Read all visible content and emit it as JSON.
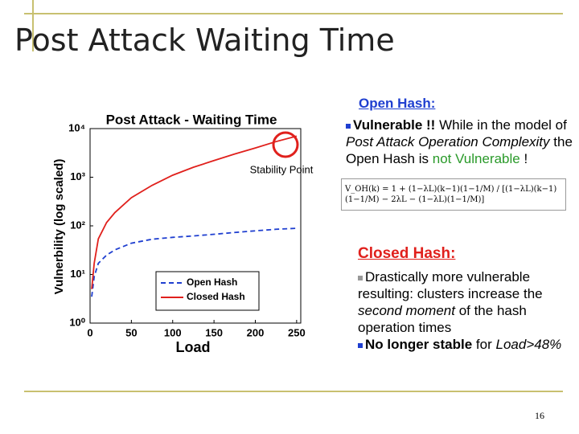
{
  "header": {
    "title": "Post Attack Waiting Time"
  },
  "chart_data": {
    "type": "line",
    "title": "Post Attack - Waiting Time",
    "x_label": "Load",
    "y_label": "Vulnerbility (log scaled)",
    "annotation": "Stability Point",
    "x": [
      2,
      5,
      10,
      20,
      30,
      50,
      75,
      100,
      125,
      150,
      175,
      200,
      225,
      250
    ],
    "series": [
      {
        "name": "Open Hash",
        "color": "#1f3fd0",
        "dash": true,
        "values": [
          3.5,
          9,
          17,
          25,
          32,
          44,
          53,
          58,
          62,
          67,
          73,
          79,
          85,
          89
        ]
      },
      {
        "name": "Closed Hash",
        "color": "#e0201c",
        "dash": false,
        "values": [
          5,
          17,
          54,
          117,
          187,
          380,
          680,
          1100,
          1600,
          2200,
          3000,
          4000,
          5400,
          7000
        ]
      }
    ],
    "xlim": [
      0,
      255
    ],
    "xticks": [
      0,
      50,
      100,
      150,
      200,
      250
    ],
    "ylim": [
      1,
      10000
    ],
    "log_scale": true,
    "yticks": [
      {
        "value": 1,
        "label": "10⁰"
      },
      {
        "value": 10,
        "label": "10¹"
      },
      {
        "value": 100,
        "label": "10²"
      },
      {
        "value": 1000,
        "label": "10³"
      },
      {
        "value": 10000,
        "label": "10⁴"
      }
    ],
    "grid": false,
    "legend": "lower right"
  },
  "open_hash": {
    "heading": "Open Hash:",
    "lead": "Vulnerable !!",
    "text1": "While in the model of",
    "em1": "Post Attack Operation Complexity",
    "text2": "the Open Hash is",
    "highlight": "not Vulnerable",
    "text3": "!",
    "formula": "V_OH(k) = 1 + (1−λL)(k−1)(1−1/M) / [(1−λL)(k−1)(1−1/M) − 2λL − (1−λL)(1−1/M)]"
  },
  "closed_hash": {
    "heading": "Closed Hash:",
    "b1a": "Drastically more vulnerable resulting: clusters increase the",
    "b1em": "second moment",
    "b1b": "of the hash operation times",
    "b2lead": "No longer stable",
    "b2text": "for",
    "b2em": "Load>48%"
  },
  "page_number": "16"
}
